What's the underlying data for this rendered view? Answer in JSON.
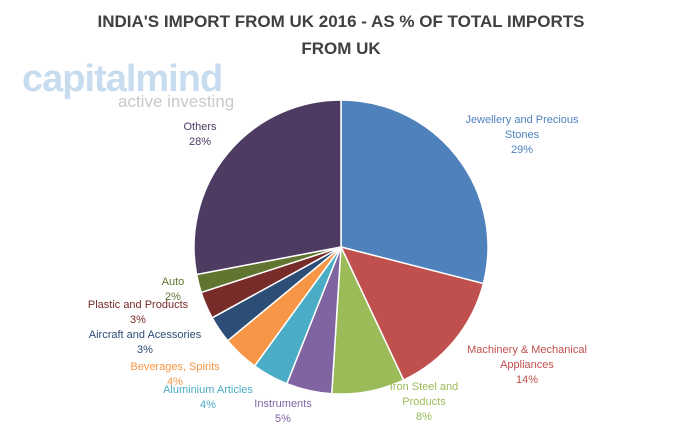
{
  "chart_data": {
    "type": "pie",
    "title": "INDIA'S IMPORT FROM UK 2016 - AS % OF TOTAL IMPORTS FROM UK",
    "watermark": {
      "brand": "capitalmind",
      "tagline": "active investing"
    },
    "categories": [
      "Jewellery and Precious Stones",
      "Machinery & Mechanical Appliances",
      "Iron Steel and Products",
      "Instruments",
      "Aluminium Articles",
      "Beverages, Spirits",
      "Aircraft and Acessories",
      "Plastic and Products",
      "Auto",
      "Others"
    ],
    "values": [
      29,
      14,
      8,
      5,
      4,
      4,
      3,
      3,
      2,
      28
    ],
    "value_labels": [
      "29%",
      "14%",
      "8%",
      "5%",
      "4%",
      "4%",
      "3%",
      "3%",
      "2%",
      "28%"
    ],
    "colors": [
      "#4f81bd",
      "#c0504d",
      "#9bbb59",
      "#8064a2",
      "#4bacc6",
      "#f79646",
      "#2c4d75",
      "#772c2a",
      "#5f7530",
      "#4d3b62"
    ]
  }
}
